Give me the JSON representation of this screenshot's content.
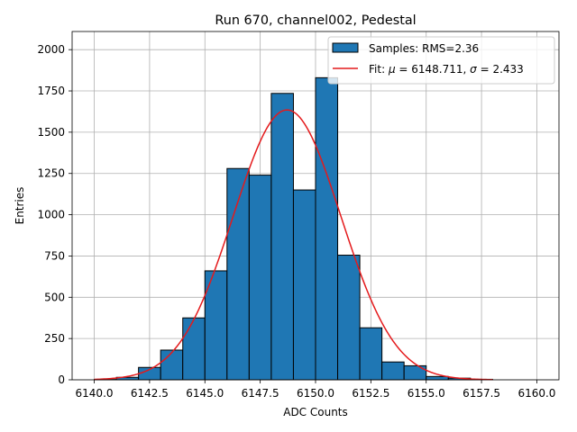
{
  "chart_data": {
    "type": "bar",
    "title": "Run 670, channel002, Pedestal",
    "xlabel": "ADC Counts",
    "ylabel": "Entries",
    "xlim": [
      6139.0,
      6161.0
    ],
    "ylim": [
      0,
      2110
    ],
    "grid": true,
    "x_ticks": [
      {
        "value": 6140.0,
        "label": "6140.0"
      },
      {
        "value": 6142.5,
        "label": "6142.5"
      },
      {
        "value": 6145.0,
        "label": "6145.0"
      },
      {
        "value": 6147.5,
        "label": "6147.5"
      },
      {
        "value": 6150.0,
        "label": "6150.0"
      },
      {
        "value": 6152.5,
        "label": "6152.5"
      },
      {
        "value": 6155.0,
        "label": "6155.0"
      },
      {
        "value": 6157.5,
        "label": "6157.5"
      },
      {
        "value": 6160.0,
        "label": "6160.0"
      }
    ],
    "y_ticks": [
      {
        "value": 0,
        "label": "0"
      },
      {
        "value": 250,
        "label": "250"
      },
      {
        "value": 500,
        "label": "500"
      },
      {
        "value": 750,
        "label": "750"
      },
      {
        "value": 1000,
        "label": "1000"
      },
      {
        "value": 1250,
        "label": "1250"
      },
      {
        "value": 1500,
        "label": "1500"
      },
      {
        "value": 1750,
        "label": "1750"
      },
      {
        "value": 2000,
        "label": "2000"
      }
    ],
    "histogram": {
      "name": "Samples: RMS=2.36",
      "color": "#1f77b4",
      "edge_color": "#000000",
      "bins": [
        {
          "left": 6140,
          "right": 6141,
          "value": 2
        },
        {
          "left": 6141,
          "right": 6142,
          "value": 15
        },
        {
          "left": 6142,
          "right": 6143,
          "value": 75
        },
        {
          "left": 6143,
          "right": 6144,
          "value": 180
        },
        {
          "left": 6144,
          "right": 6145,
          "value": 375
        },
        {
          "left": 6145,
          "right": 6146,
          "value": 660
        },
        {
          "left": 6146,
          "right": 6147,
          "value": 1280
        },
        {
          "left": 6147,
          "right": 6148,
          "value": 1240
        },
        {
          "left": 6148,
          "right": 6149,
          "value": 1735
        },
        {
          "left": 6149,
          "right": 6150,
          "value": 1150
        },
        {
          "left": 6150,
          "right": 6151,
          "value": 1830
        },
        {
          "left": 6151,
          "right": 6152,
          "value": 755
        },
        {
          "left": 6152,
          "right": 6153,
          "value": 315
        },
        {
          "left": 6153,
          "right": 6154,
          "value": 108
        },
        {
          "left": 6154,
          "right": 6155,
          "value": 85
        },
        {
          "left": 6155,
          "right": 6156,
          "value": 20
        },
        {
          "left": 6156,
          "right": 6157,
          "value": 10
        },
        {
          "left": 6157,
          "right": 6158,
          "value": 3
        }
      ]
    },
    "fit": {
      "name_prefix": "Fit: ",
      "mu_symbol": "μ",
      "mu_text": " = 6148.711, ",
      "sigma_symbol": "σ",
      "sigma_text": " = 2.433",
      "mu": 6148.711,
      "sigma": 2.433,
      "amplitude": 1635,
      "x_start": 6140.0,
      "x_end": 6158.0,
      "color": "#e41a1c"
    },
    "legend_position": "top-right"
  }
}
